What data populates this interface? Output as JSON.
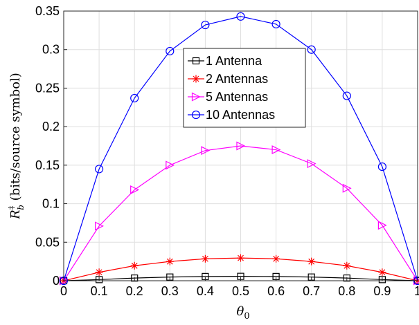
{
  "chart_data": {
    "type": "line",
    "x": [
      0,
      0.1,
      0.2,
      0.3,
      0.4,
      0.5,
      0.6,
      0.7,
      0.8,
      0.9,
      1
    ],
    "xlim": [
      0,
      1
    ],
    "ylim": [
      0,
      0.35
    ],
    "xticks": [
      "0",
      "0.1",
      "0.2",
      "0.3",
      "0.4",
      "0.5",
      "0.6",
      "0.7",
      "0.8",
      "0.9",
      "1"
    ],
    "xtick_values": [
      0,
      0.1,
      0.2,
      0.3,
      0.4,
      0.5,
      0.6,
      0.7,
      0.8,
      0.9,
      1
    ],
    "yticks": [
      "0",
      "0.05",
      "0.1",
      "0.15",
      "0.2",
      "0.25",
      "0.3",
      "0.35"
    ],
    "ytick_values": [
      0,
      0.05,
      0.1,
      0.15,
      0.2,
      0.25,
      0.3,
      0.35
    ],
    "xlabel": {
      "base": "θ",
      "sub": "0"
    },
    "ylabel": {
      "base": "R",
      "sup": "‡",
      "sub": "b",
      "rest": " (bits/source symbol)"
    },
    "grid": true,
    "legend_position": "top-center",
    "series": [
      {
        "name": "1 Antenna",
        "color": "#000000",
        "marker": "square",
        "values": [
          0,
          0.0015,
          0.0035,
          0.0048,
          0.0055,
          0.0057,
          0.0055,
          0.0048,
          0.0035,
          0.0015,
          0
        ]
      },
      {
        "name": "2 Antennas",
        "color": "#ff0000",
        "marker": "star",
        "values": [
          0,
          0.011,
          0.0195,
          0.025,
          0.0285,
          0.0295,
          0.0285,
          0.025,
          0.0195,
          0.011,
          0
        ]
      },
      {
        "name": "5 Antennas",
        "color": "#ff00ff",
        "marker": "triangle-right",
        "values": [
          0,
          0.071,
          0.118,
          0.15,
          0.169,
          0.175,
          0.17,
          0.152,
          0.12,
          0.072,
          0
        ]
      },
      {
        "name": "10 Antennas",
        "color": "#0000ff",
        "marker": "circle",
        "values": [
          0,
          0.145,
          0.237,
          0.298,
          0.332,
          0.343,
          0.333,
          0.3,
          0.24,
          0.148,
          0
        ]
      }
    ]
  }
}
